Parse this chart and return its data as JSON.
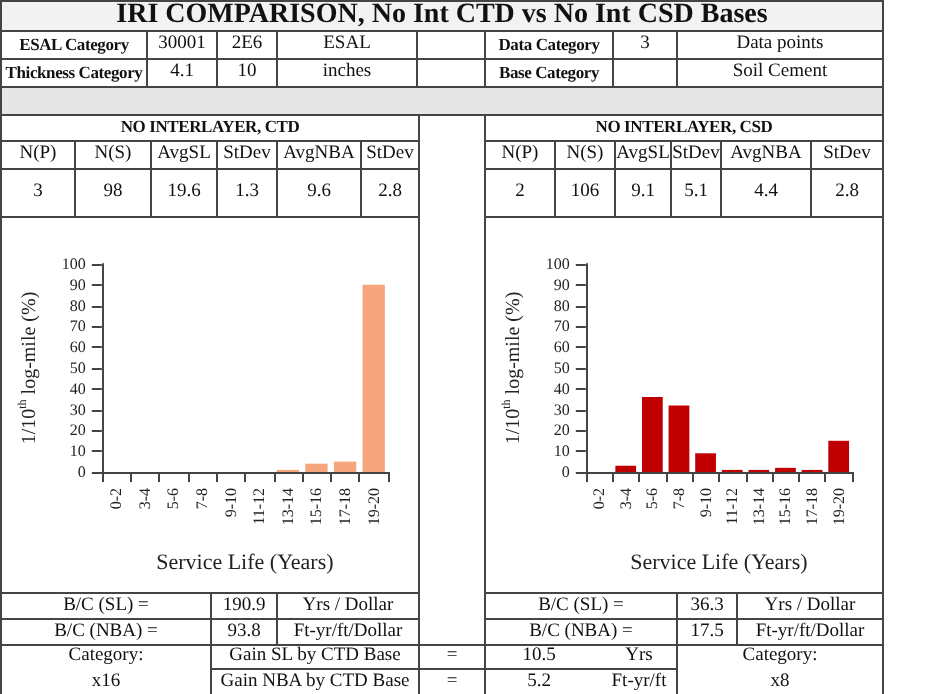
{
  "chart_data": [
    {
      "type": "other",
      "title": "IRI  COMPARISON, No Int CTD vs No Int CSD Bases",
      "annotations": [
        "ESAL Category",
        "30001",
        "2E6",
        "ESAL",
        "Data Category",
        "3",
        "Data points",
        "Thickness Category",
        "4.1",
        "10",
        "inches",
        "Base Category",
        "Soil Cement"
      ]
    },
    {
      "type": "bar",
      "title": "NO INTERLAYER, CTD",
      "xlabel": "Service Life (Years)",
      "ylabel": "1/10$^{th}$ log-mile (%)",
      "categories": [
        "0-2",
        "3-4",
        "5-6",
        "7-8",
        "9-10",
        "11-12",
        "13-14",
        "15-16",
        "17-18",
        "19-20"
      ],
      "values": [
        0,
        0,
        0,
        0,
        0,
        0,
        1,
        4,
        5,
        90
      ],
      "color": "#f7a57c",
      "ylim": [
        0,
        100
      ],
      "yticks": [
        0,
        10,
        20,
        30,
        40,
        50,
        60,
        70,
        80,
        90,
        100
      ],
      "grid": false,
      "annotations": [
        "N(P)",
        "N(S)",
        "AvgSL",
        "StDev",
        "AvgNBA",
        "StDev",
        "3",
        "98",
        "19.6",
        "1.3",
        "9.6",
        "2.8",
        "B/C (SL) =",
        "190.9",
        "Yrs / Dollar",
        "B/C (NBA) =",
        "93.8",
        "Ft-yr/ft/Dollar"
      ]
    },
    {
      "type": "bar",
      "title": "NO INTERLAYER, CSD",
      "xlabel": "Service Life (Years)",
      "ylabel": "1/10$^{th}$ log-mile (%)",
      "categories": [
        "0-2",
        "3-4",
        "5-6",
        "7-8",
        "9-10",
        "11-12",
        "13-14",
        "15-16",
        "17-18",
        "19-20"
      ],
      "values": [
        0,
        3,
        36,
        32,
        9,
        1,
        1,
        2,
        1,
        15
      ],
      "color": "#c00000",
      "ylim": [
        0,
        100
      ],
      "yticks": [
        0,
        10,
        20,
        30,
        40,
        50,
        60,
        70,
        80,
        90,
        100
      ],
      "grid": false,
      "annotations": [
        "N(P)",
        "N(S)",
        "AvgSL",
        "StDev",
        "AvgNBA",
        "StDev",
        "2",
        "106",
        "9.1",
        "5.1",
        "4.4",
        "2.8",
        "B/C (SL) =",
        "36.3",
        "Yrs / Dollar",
        "B/C (NBA) =",
        "17.5",
        "Ft-yr/ft/Dollar"
      ]
    },
    {
      "type": "other",
      "annotations": [
        "Category:",
        "x16",
        "Gain SL by CTD Base",
        "=",
        "10.5",
        "Yrs",
        "Gain NBA by CTD Base",
        "=",
        "5.2",
        "Ft-yr/ft",
        "Category:",
        "x8"
      ]
    }
  ]
}
